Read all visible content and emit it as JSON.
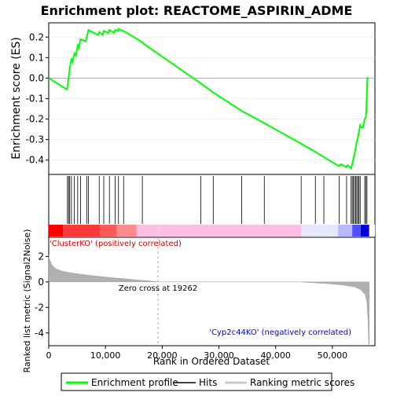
{
  "chart_data": {
    "type": "line",
    "title": "Enrichment plot: REACTOME_ASPIRIN_ADME",
    "es_panel": {
      "ylabel": "Enrichment score (ES)",
      "ylim": [
        -0.47,
        0.27
      ],
      "yticks": [
        0.2,
        0.1,
        0.0,
        -0.1,
        -0.2,
        -0.3,
        -0.4
      ],
      "ytick_labels": [
        "0.2",
        "0.1",
        "0.0",
        "-0.1",
        "-0.2",
        "-0.3",
        "-0.4"
      ],
      "series": [
        {
          "name": "Enrichment profile",
          "color": "#00ff00",
          "x": [
            0,
            3200,
            3300,
            3500,
            3700,
            4000,
            4200,
            4500,
            4800,
            5100,
            5300,
            5600,
            6500,
            6700,
            7000,
            8700,
            8900,
            9500,
            9700,
            10500,
            10700,
            11500,
            11700,
            12200,
            12300,
            13000,
            13200,
            16500,
            16600,
            26500,
            29000,
            34000,
            38000,
            44500,
            47000,
            48500,
            51200,
            51500,
            52500,
            52700,
            53300,
            53500,
            53700,
            53900,
            54100,
            54300,
            54500,
            54700,
            54900,
            55100,
            55400,
            55700,
            55900,
            56000,
            56100,
            56200
          ],
          "y": [
            0.0,
            -0.055,
            -0.04,
            0.0,
            0.05,
            0.09,
            0.08,
            0.12,
            0.11,
            0.16,
            0.15,
            0.19,
            0.18,
            0.2,
            0.235,
            0.21,
            0.225,
            0.21,
            0.23,
            0.22,
            0.235,
            0.22,
            0.235,
            0.23,
            0.24,
            0.23,
            0.23,
            0.175,
            0.17,
            -0.02,
            -0.07,
            -0.16,
            -0.22,
            -0.32,
            -0.36,
            -0.385,
            -0.43,
            -0.42,
            -0.435,
            -0.425,
            -0.44,
            -0.42,
            -0.395,
            -0.37,
            -0.34,
            -0.31,
            -0.29,
            -0.26,
            -0.23,
            -0.24,
            -0.24,
            -0.2,
            -0.19,
            -0.14,
            -0.06,
            0.005
          ]
        }
      ]
    },
    "hits": {
      "name": "Hits",
      "x": [
        3300,
        3500,
        3700,
        4000,
        4500,
        5100,
        5600,
        6700,
        7000,
        8900,
        9700,
        10700,
        11700,
        12300,
        13200,
        16500,
        26800,
        29000,
        34000,
        38000,
        44500,
        47000,
        48500,
        51200,
        52500,
        53300,
        53500,
        53700,
        53900,
        54100,
        54300,
        54500,
        54700,
        54900,
        55700,
        55900,
        56100
      ]
    },
    "ranked_metric": {
      "name": "Ranking metric scores",
      "ylabel": "Ranked list metric (Signal2Noise)",
      "xlabel": "Rank in Ordered Dataset",
      "ylim": [
        -5,
        3.5
      ],
      "yticks": [
        2,
        0,
        -2,
        -4
      ],
      "ytick_labels": [
        "2",
        "0",
        "-2",
        "-4"
      ],
      "xlim": [
        0,
        57500
      ],
      "xticks": [
        0,
        10000,
        20000,
        30000,
        40000,
        50000
      ],
      "xtick_labels": [
        "0",
        "10,000",
        "20,000",
        "30,000",
        "40,000",
        "50,000"
      ],
      "profile_x": [
        0,
        200,
        600,
        1200,
        2000,
        3000,
        4500,
        6500,
        9000,
        12000,
        15000,
        17500,
        19262,
        25000,
        35000,
        44000,
        46000,
        49000,
        52000,
        54000,
        55000,
        55800,
        56100,
        56300,
        56400,
        56500
      ],
      "profile_y": [
        2.1,
        1.7,
        1.3,
        1.05,
        0.9,
        0.78,
        0.67,
        0.55,
        0.43,
        0.3,
        0.18,
        0.09,
        0.0,
        0.0,
        0.0,
        0.0,
        -0.05,
        -0.13,
        -0.25,
        -0.4,
        -0.6,
        -1.0,
        -1.6,
        -3.2,
        -4.8,
        -5.0
      ],
      "zero_cross_rank": 19262,
      "zero_cross_label": "Zero cross at 19262",
      "pos_label": "'ClusterKO' (positively correlated)",
      "neg_label": "'Cyp2c44KO' (negatively correlated)",
      "pos_color": "#cc0000",
      "neg_color": "#0000cc"
    },
    "legend": {
      "placement": "bottom",
      "items": [
        {
          "label": "Enrichment profile",
          "color": "#00ff00"
        },
        {
          "label": "Hits",
          "color": "#000000"
        },
        {
          "label": "Ranking metric scores",
          "color": "#cccccc"
        }
      ]
    }
  }
}
